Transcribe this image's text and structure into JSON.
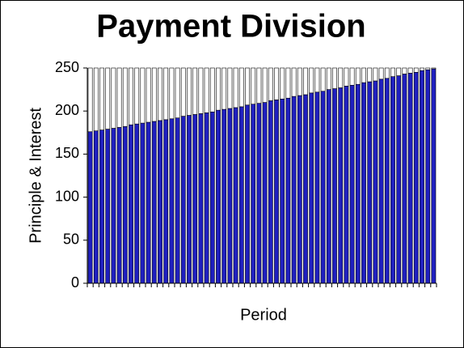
{
  "chart_data": {
    "type": "stacked-bar",
    "title": "Payment Division",
    "x_label": "Period",
    "y_label": "Principle & Interest",
    "categories": [
      null,
      null,
      null,
      null,
      null,
      null,
      null,
      null,
      null,
      null,
      null,
      null,
      null,
      null,
      null,
      null,
      null,
      null,
      null,
      null,
      null,
      null,
      null,
      null,
      null,
      null,
      null,
      null,
      null,
      null,
      null,
      null,
      null,
      null,
      null,
      null,
      null,
      null,
      null,
      null,
      null,
      null,
      null,
      null,
      null,
      null,
      null,
      null,
      null,
      null,
      null,
      null,
      null,
      null,
      null,
      null,
      null,
      null,
      null,
      null
    ],
    "series": [
      {
        "color": "#2020c0",
        "values": [
          176,
          177,
          178,
          179,
          180,
          181,
          182,
          184,
          185,
          186,
          187,
          188,
          189,
          190,
          191,
          192,
          194,
          195,
          196,
          197,
          198,
          199,
          201,
          202,
          203,
          204,
          205,
          207,
          208,
          209,
          210,
          212,
          213,
          214,
          215,
          217,
          218,
          219,
          221,
          222,
          223,
          225,
          226,
          227,
          229,
          230,
          231,
          233,
          234,
          235,
          237,
          238,
          240,
          241,
          243,
          244,
          245,
          247,
          248,
          249
        ]
      },
      {
        "color": "#ffffff",
        "values": [
          74,
          73,
          72,
          71,
          70,
          69,
          68,
          66,
          65,
          64,
          63,
          62,
          61,
          60,
          59,
          58,
          56,
          55,
          54,
          53,
          52,
          51,
          49,
          48,
          47,
          46,
          45,
          43,
          42,
          41,
          40,
          38,
          37,
          36,
          35,
          33,
          32,
          31,
          29,
          28,
          27,
          25,
          24,
          23,
          21,
          20,
          19,
          17,
          16,
          15,
          13,
          12,
          10,
          9,
          7,
          6,
          5,
          3,
          2,
          1
        ]
      }
    ],
    "ylim": [
      0,
      250
    ],
    "yticks": [
      0,
      50,
      100,
      150,
      200,
      250
    ]
  }
}
